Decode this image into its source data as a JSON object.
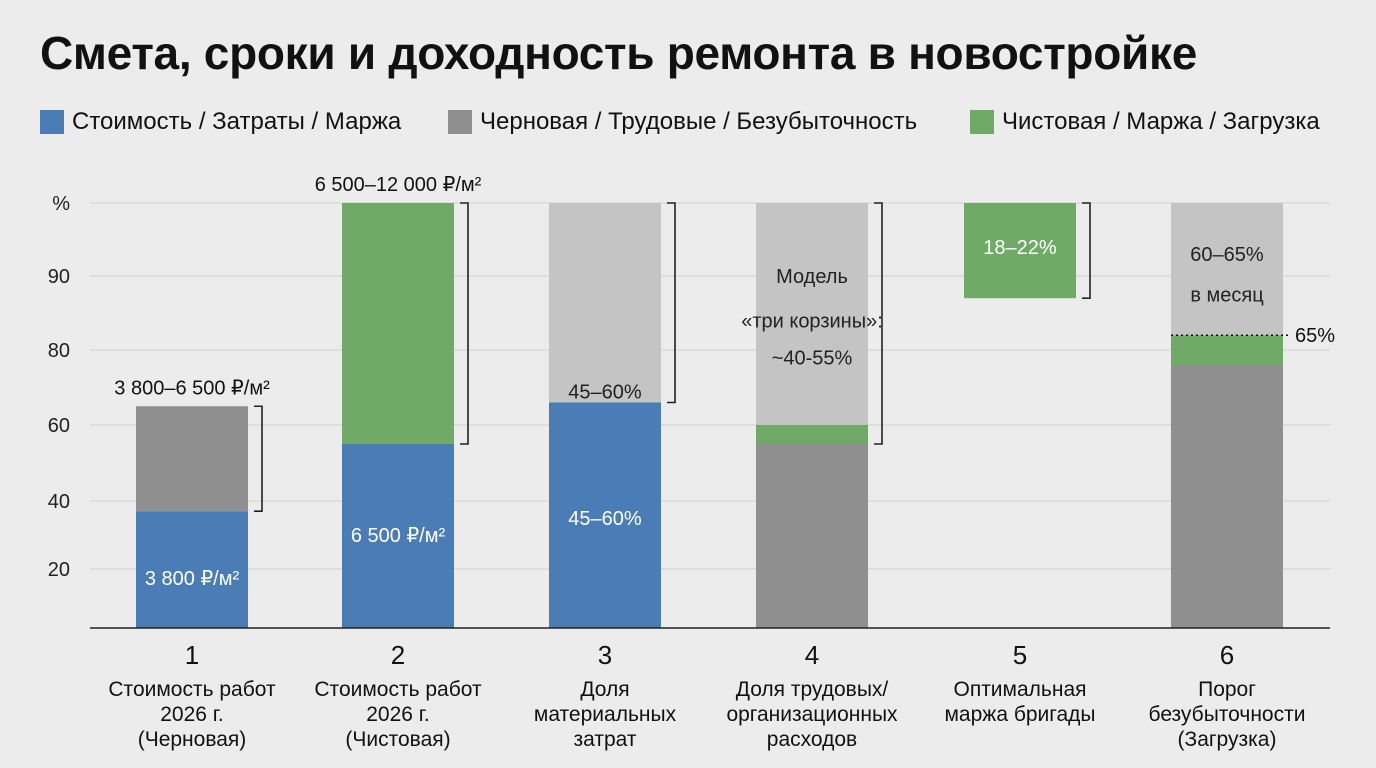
{
  "title": "Смета, сроки и доходность ремонта в новостройке",
  "legend": [
    {
      "label": "Стоимость / Затраты / Маржа",
      "color": "#4a7db5"
    },
    {
      "label": "Черновая / Трудовые / Безубыточность",
      "color": "#8f8f8f"
    },
    {
      "label": "Чистовая / Маржа / Загрузка",
      "color": "#6faa66"
    }
  ],
  "chart_data": {
    "type": "bar",
    "stacked": true,
    "y_axis": {
      "unit": "%",
      "ticks": [
        20,
        40,
        60,
        80,
        90
      ]
    },
    "grid": true,
    "colors": {
      "blue": "#4a7db5",
      "darkgray": "#8f8f8f",
      "lightgray": "#c4c4c4",
      "green": "#6faa66"
    },
    "categories": [
      {
        "num": "1",
        "label": [
          "Стоимость работ",
          "2026 г.",
          "(Черновая)"
        ]
      },
      {
        "num": "2",
        "label": [
          "Стоимость работ",
          "2026 г.",
          "(Чистовая)"
        ]
      },
      {
        "num": "3",
        "label": [
          "Доля",
          "материальных",
          "затрат"
        ]
      },
      {
        "num": "4",
        "label": [
          "Доля трудовых/",
          "организационных",
          "расходов"
        ]
      },
      {
        "num": "5",
        "label": [
          "Оптимальная",
          "маржа бригады"
        ]
      },
      {
        "num": "6",
        "label": [
          "Порог",
          "безубыточности",
          "(Загрузка)"
        ]
      }
    ],
    "bars": [
      {
        "segments": [
          {
            "from": 0,
            "to": 37,
            "color": "blue"
          },
          {
            "from": 37,
            "to": 65,
            "color": "darkgray"
          }
        ],
        "labels": [
          {
            "text": "3 800 ₽/м²",
            "at": 17,
            "color": "#ffffff"
          }
        ],
        "top_label": "3 800–6 500 ₽/м²",
        "bracket": [
          37,
          65
        ]
      },
      {
        "segments": [
          {
            "from": 0,
            "to": 55,
            "color": "blue"
          },
          {
            "from": 55,
            "to": 100,
            "color": "green"
          }
        ],
        "labels": [
          {
            "text": "6 500 ₽/м²",
            "at": 30,
            "color": "#ffffff"
          }
        ],
        "top_label": "6 500–12 000 ₽/м²",
        "bracket": [
          55,
          100
        ]
      },
      {
        "segments": [
          {
            "from": 0,
            "to": 66,
            "color": "blue"
          },
          {
            "from": 66,
            "to": 100,
            "color": "lightgray"
          }
        ],
        "labels": [
          {
            "text": "45–60%",
            "at": 35,
            "color": "#ffffff"
          },
          {
            "text": "45–60%",
            "at": 69,
            "color": "#222222"
          }
        ],
        "bracket": [
          66,
          100
        ]
      },
      {
        "segments": [
          {
            "from": 0,
            "to": 55,
            "color": "darkgray"
          },
          {
            "from": 55,
            "to": 60,
            "color": "green"
          },
          {
            "from": 60,
            "to": 100,
            "color": "lightgray"
          }
        ],
        "labels": [
          {
            "text": "Модель",
            "at": 90,
            "color": "#222222"
          },
          {
            "text": "«три корзины»:",
            "at": 84,
            "color": "#222222"
          },
          {
            "text": "~40-55%",
            "at": 78,
            "color": "#222222"
          }
        ],
        "bracket": [
          55,
          100
        ]
      },
      {
        "segments": [
          {
            "from": 87,
            "to": 100,
            "color": "green"
          }
        ],
        "labels": [
          {
            "text": "18–22%",
            "at": 94,
            "color": "#ffffff"
          }
        ],
        "bracket": [
          87,
          100
        ]
      },
      {
        "segments": [
          {
            "from": 0,
            "to": 76,
            "color": "darkgray"
          },
          {
            "from": 76,
            "to": 82,
            "color": "green"
          },
          {
            "from": 82,
            "to": 100,
            "color": "lightgray"
          }
        ],
        "labels": [
          {
            "text": "60–65%",
            "at": 93,
            "color": "#222222"
          },
          {
            "text": "в месяц",
            "at": 87.5,
            "color": "#222222"
          }
        ],
        "dotted_line": {
          "at": 82,
          "label": "65%"
        }
      }
    ]
  }
}
